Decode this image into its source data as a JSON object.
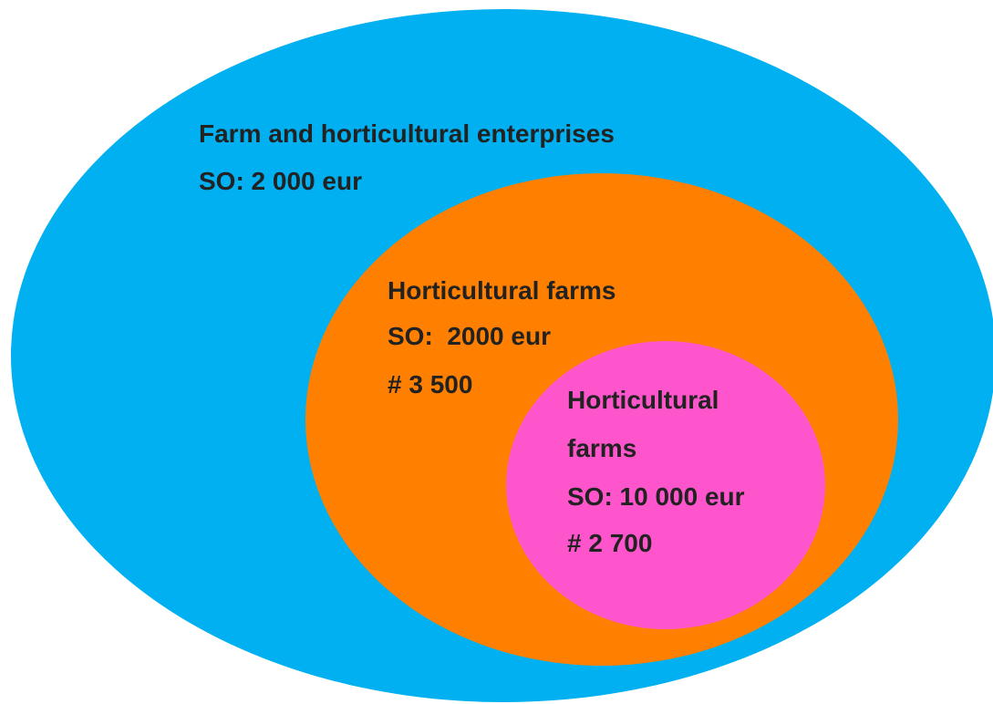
{
  "nodes": [
    {
      "lines": [
        "Farm and horticultural enterprises",
        "SO: 2 000 eur"
      ]
    },
    {
      "lines": [
        "Horticultural farms",
        "SO:  2000 eur",
        "# 3 500"
      ]
    },
    {
      "lines": [
        "Horticultural",
        "farms",
        "SO: 10 000 eur",
        "# 2 700"
      ]
    }
  ]
}
